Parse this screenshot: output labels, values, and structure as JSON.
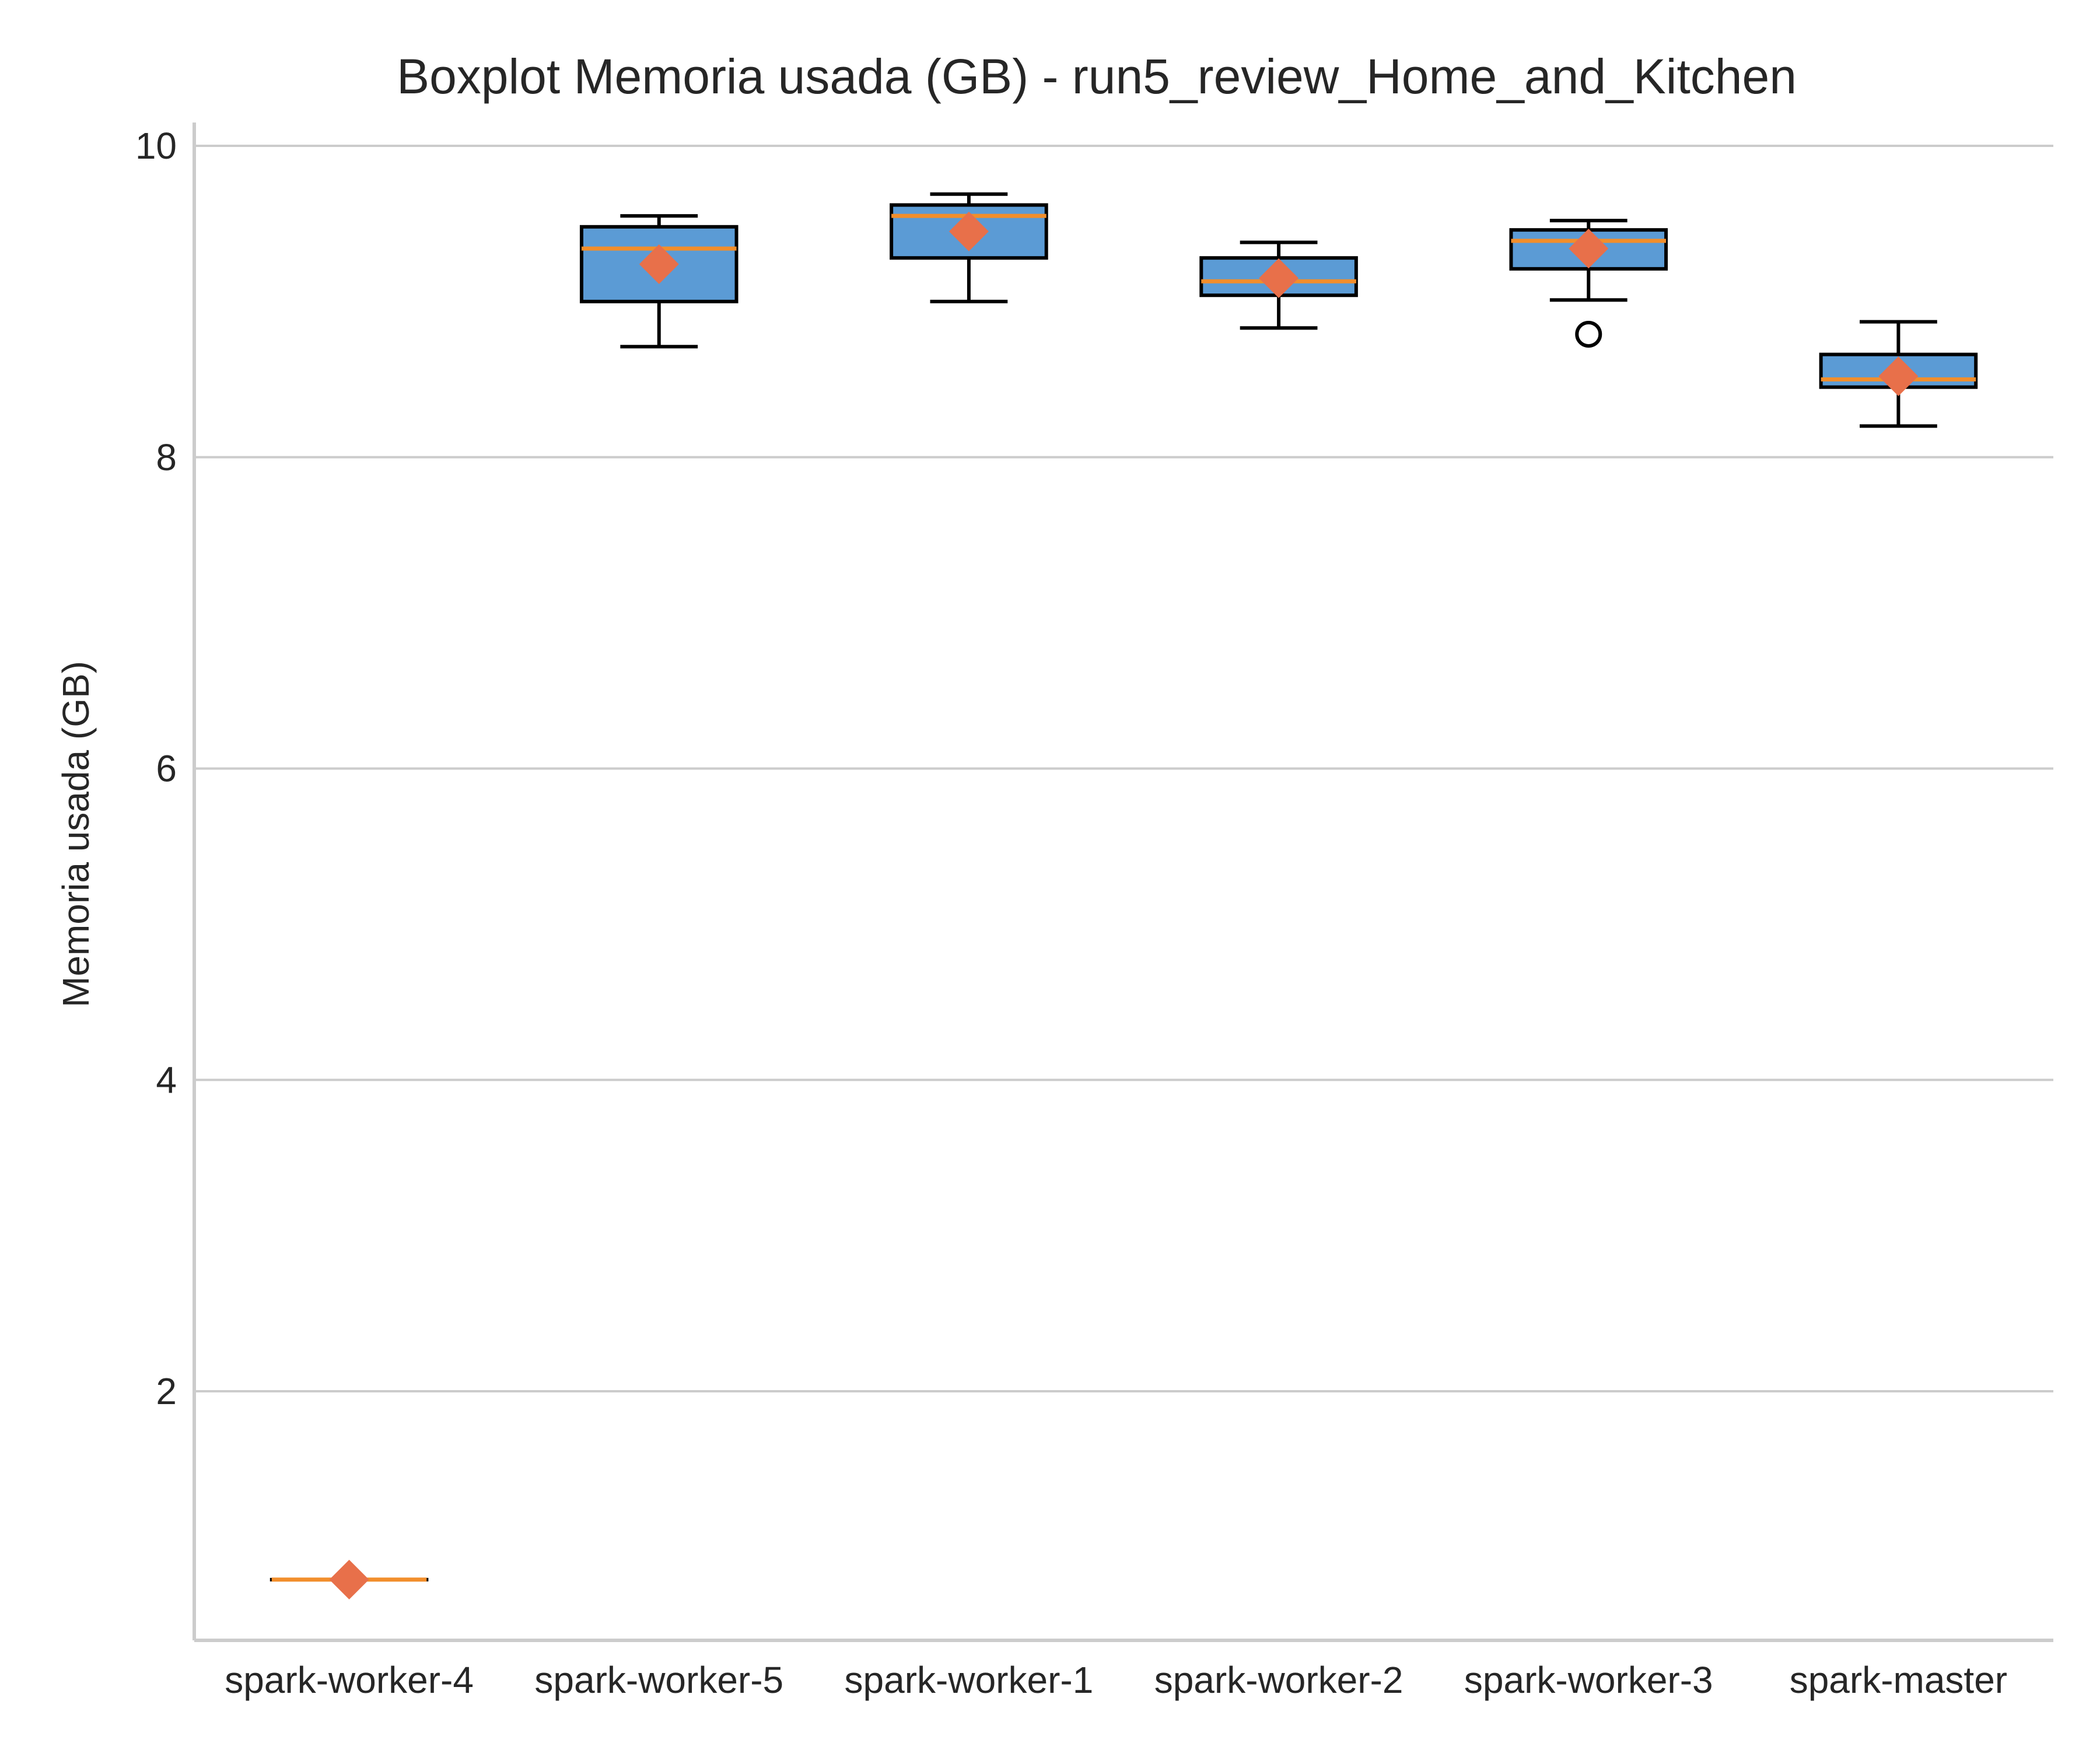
{
  "chart_data": {
    "type": "box",
    "title": "Boxplot Memoria usada (GB) - run5_review_Home_and_Kitchen",
    "xlabel": "",
    "ylabel": "Memoria usada (GB)",
    "ylim": [
      0.4,
      10.15
    ],
    "yticks": [
      2,
      4,
      6,
      8,
      10
    ],
    "grid": "horizontal",
    "categories": [
      "spark-worker-4",
      "spark-worker-5",
      "spark-worker-1",
      "spark-worker-2",
      "spark-worker-3",
      "spark-master"
    ],
    "boxes": [
      {
        "name": "spark-worker-4",
        "whisker_low": 0.79,
        "q1": 0.79,
        "median": 0.79,
        "q3": 0.79,
        "whisker_high": 0.79,
        "mean": 0.79,
        "outliers": []
      },
      {
        "name": "spark-worker-5",
        "whisker_low": 8.71,
        "q1": 9.0,
        "median": 9.34,
        "q3": 9.48,
        "whisker_high": 9.55,
        "mean": 9.24,
        "outliers": []
      },
      {
        "name": "spark-worker-1",
        "whisker_low": 9.0,
        "q1": 9.28,
        "median": 9.55,
        "q3": 9.62,
        "whisker_high": 9.69,
        "mean": 9.45,
        "outliers": []
      },
      {
        "name": "spark-worker-2",
        "whisker_low": 8.83,
        "q1": 9.04,
        "median": 9.13,
        "q3": 9.28,
        "whisker_high": 9.38,
        "mean": 9.15,
        "outliers": []
      },
      {
        "name": "spark-worker-3",
        "whisker_low": 9.01,
        "q1": 9.21,
        "median": 9.39,
        "q3": 9.46,
        "whisker_high": 9.52,
        "mean": 9.34,
        "outliers": [
          8.79
        ]
      },
      {
        "name": "spark-master",
        "whisker_low": 8.2,
        "q1": 8.45,
        "median": 8.5,
        "q3": 8.66,
        "whisker_high": 8.87,
        "mean": 8.52,
        "outliers": []
      }
    ],
    "colors": {
      "box_fill": "#5b9bd5",
      "box_edge": "#000000",
      "median": "#f28e2b",
      "mean_marker": "#e8704a",
      "grid": "#cccccc",
      "axis": "#cccccc"
    }
  }
}
